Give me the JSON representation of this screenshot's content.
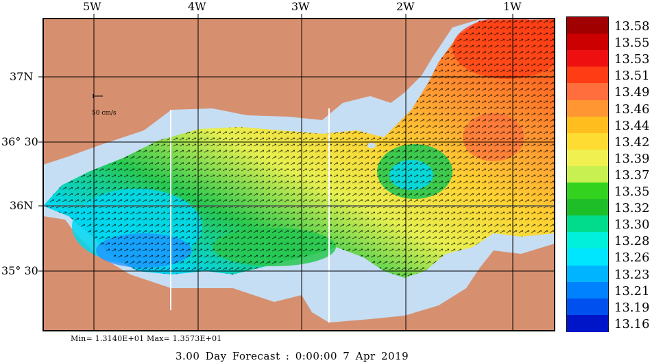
{
  "map": {
    "lon_labels": [
      "5W",
      "4W",
      "3W",
      "2W",
      "1W"
    ],
    "lat_labels": [
      "37N",
      "36° 30",
      "36N",
      "35° 30"
    ],
    "scale_label": "50 cm/s",
    "min_max": "Min= 1.3140E+01  Max= 1.3573E+01",
    "footer": "3.00 Day Forecast :  0:00:00   7 Apr 2019",
    "land_color": "#d7906f",
    "shelf_color": "#c5def4"
  },
  "colorbar": {
    "labels": [
      "13.58",
      "13.55",
      "13.53",
      "13.51",
      "13.49",
      "13.46",
      "13.44",
      "13.42",
      "13.39",
      "13.37",
      "13.35",
      "13.32",
      "13.30",
      "13.28",
      "13.26",
      "13.23",
      "13.21",
      "13.19",
      "13.16"
    ],
    "colors": [
      "#a00000",
      "#cc0000",
      "#ee1010",
      "#ff3c14",
      "#ff6e3c",
      "#ff9632",
      "#ffbe1e",
      "#ffdc32",
      "#f0f050",
      "#c8f050",
      "#32d21e",
      "#1ebe28",
      "#00dc8c",
      "#00f0dc",
      "#00e6ff",
      "#00b4ff",
      "#0082ff",
      "#0050f0",
      "#0014c8"
    ]
  }
}
